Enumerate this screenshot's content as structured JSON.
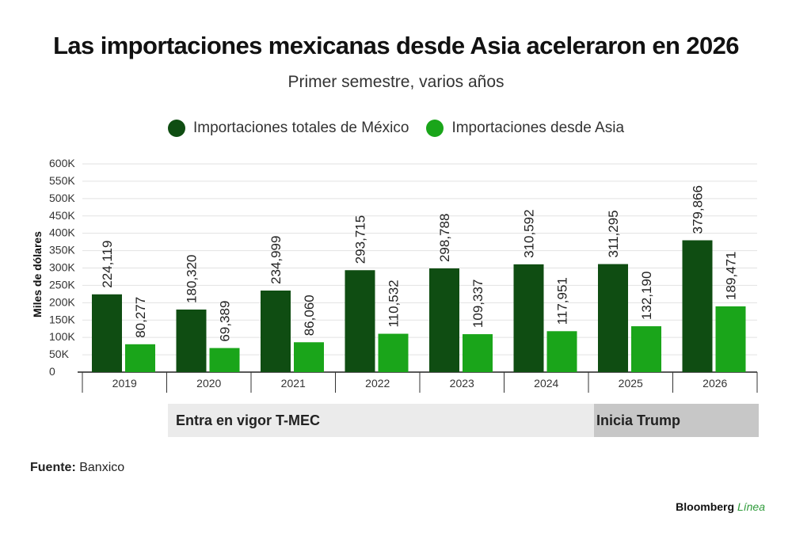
{
  "title": "Las importaciones mexicanas desde Asia aceleraron en 2026",
  "subtitle": "Primer semestre, varios años",
  "legend": [
    {
      "label": "Importaciones totales de México",
      "color": "#0f4d12"
    },
    {
      "label": "Importaciones desde Asia",
      "color": "#1aa51a"
    }
  ],
  "bands": {
    "tmec": "Entra en vigor T-MEC",
    "trump": "Inicia Trump"
  },
  "source": {
    "label": "Fuente:",
    "text": "Banxico"
  },
  "brand": {
    "name": "Bloomberg",
    "accent": "Línea"
  },
  "chart_data": {
    "type": "bar",
    "title": "Las importaciones mexicanas desde Asia aceleraron en 2026",
    "subtitle": "Primer semestre, varios años",
    "xlabel": "",
    "ylabel": "Miles de dólares",
    "ylim": [
      0,
      600000
    ],
    "yticks": [
      0,
      50000,
      100000,
      150000,
      200000,
      250000,
      300000,
      350000,
      400000,
      450000,
      500000,
      550000,
      600000
    ],
    "ytick_labels": [
      "0",
      "50K",
      "100K",
      "150K",
      "200K",
      "250K",
      "300K",
      "350K",
      "400K",
      "450K",
      "500K",
      "550K",
      "600K"
    ],
    "grid": true,
    "legend_position": "top",
    "categories": [
      "2019",
      "2020",
      "2021",
      "2022",
      "2023",
      "2024",
      "2025",
      "2026"
    ],
    "series": [
      {
        "name": "Importaciones totales de México",
        "color": "#0f4d12",
        "values": [
          224119,
          180320,
          234999,
          293715,
          298788,
          310592,
          311295,
          379866
        ],
        "labels": [
          "224,119",
          "180,320",
          "234,999",
          "293,715",
          "298,788",
          "310,592",
          "311,295",
          "379,866"
        ]
      },
      {
        "name": "Importaciones desde Asia",
        "color": "#1aa51a",
        "values": [
          80277,
          69389,
          86060,
          110532,
          109337,
          117951,
          132190,
          189471
        ],
        "labels": [
          "80,277",
          "69,389",
          "86,060",
          "110,532",
          "109,337",
          "117,951",
          "132,190",
          "189,471"
        ]
      }
    ]
  }
}
